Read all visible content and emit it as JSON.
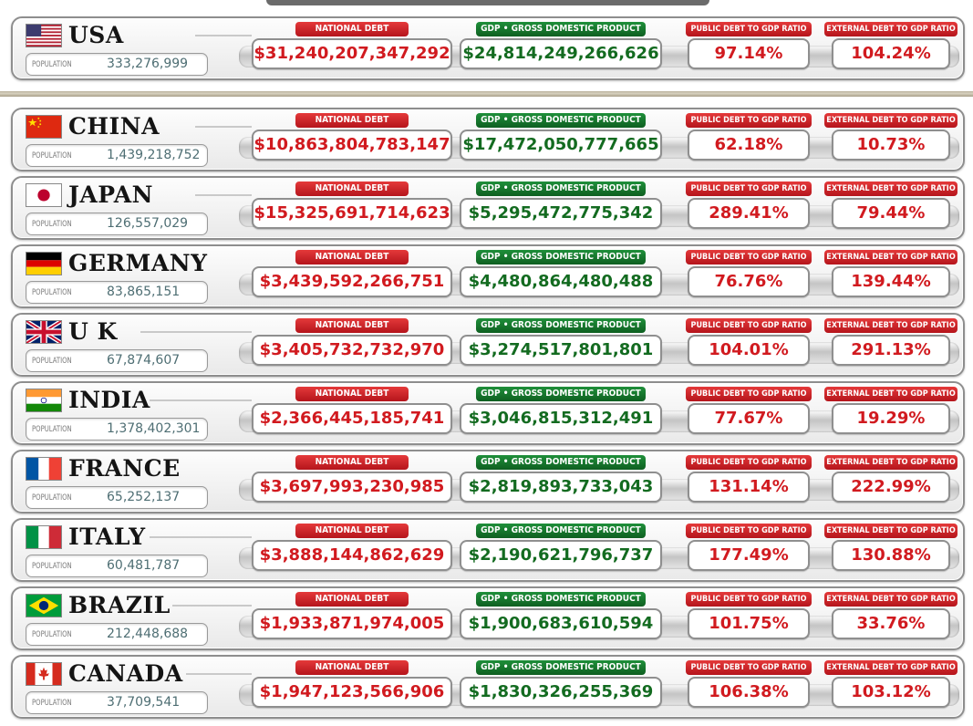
{
  "labels": {
    "population": "POPULATION",
    "national_debt": "NATIONAL DEBT",
    "gdp": "GDP • GROSS DOMESTIC PRODUCT",
    "public_ratio": "PUBLIC DEBT TO GDP RATIO",
    "external_ratio": "EXTERNAL DEBT TO GDP RATIO"
  },
  "colors": {
    "debt_red": "#d11a1f",
    "gdp_green": "#136b20",
    "badge_red": "#c8202a",
    "badge_green": "#17742c"
  },
  "countries": [
    {
      "name": "USA",
      "flag": "usa-flag-icon",
      "population": "333,276,999",
      "national_debt": "$31,240,207,347,292",
      "gdp": "$24,814,249,266,626",
      "public_ratio": "97.14%",
      "external_ratio": "104.24%"
    },
    {
      "name": "CHINA",
      "flag": "china-flag-icon",
      "population": "1,439,218,752",
      "national_debt": "$10,863,804,783,147",
      "gdp": "$17,472,050,777,665",
      "public_ratio": "62.18%",
      "external_ratio": "10.73%"
    },
    {
      "name": "JAPAN",
      "flag": "japan-flag-icon",
      "population": "126,557,029",
      "national_debt": "$15,325,691,714,623",
      "gdp": "$5,295,472,775,342",
      "public_ratio": "289.41%",
      "external_ratio": "79.44%"
    },
    {
      "name": "GERMANY",
      "flag": "germany-flag-icon",
      "population": "83,865,151",
      "national_debt": "$3,439,592,266,751",
      "gdp": "$4,480,864,480,488",
      "public_ratio": "76.76%",
      "external_ratio": "139.44%"
    },
    {
      "name": "U K",
      "flag": "uk-flag-icon",
      "population": "67,874,607",
      "national_debt": "$3,405,732,732,970",
      "gdp": "$3,274,517,801,801",
      "public_ratio": "104.01%",
      "external_ratio": "291.13%"
    },
    {
      "name": "INDIA",
      "flag": "india-flag-icon",
      "population": "1,378,402,301",
      "national_debt": "$2,366,445,185,741",
      "gdp": "$3,046,815,312,491",
      "public_ratio": "77.67%",
      "external_ratio": "19.29%"
    },
    {
      "name": "FRANCE",
      "flag": "france-flag-icon",
      "population": "65,252,137",
      "national_debt": "$3,697,993,230,985",
      "gdp": "$2,819,893,733,043",
      "public_ratio": "131.14%",
      "external_ratio": "222.99%"
    },
    {
      "name": "ITALY",
      "flag": "italy-flag-icon",
      "population": "60,481,787",
      "national_debt": "$3,888,144,862,629",
      "gdp": "$2,190,621,796,737",
      "public_ratio": "177.49%",
      "external_ratio": "130.88%"
    },
    {
      "name": "BRAZIL",
      "flag": "brazil-flag-icon",
      "population": "212,448,688",
      "national_debt": "$1,933,871,974,005",
      "gdp": "$1,900,683,610,594",
      "public_ratio": "101.75%",
      "external_ratio": "33.76%"
    },
    {
      "name": "CANADA",
      "flag": "canada-flag-icon",
      "population": "37,709,541",
      "national_debt": "$1,947,123,566,906",
      "gdp": "$1,830,326,255,369",
      "public_ratio": "106.38%",
      "external_ratio": "103.12%"
    }
  ]
}
